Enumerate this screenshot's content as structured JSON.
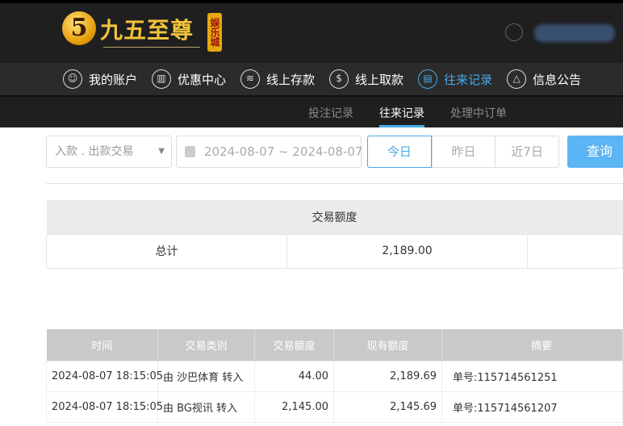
{
  "brand": {
    "logo_text": "九五至尊",
    "badge": "娱乐城",
    "logo_mark": "5"
  },
  "nav": [
    {
      "label": "我的账户",
      "icon": "user-icon",
      "active": false
    },
    {
      "label": "优惠中心",
      "icon": "gift-icon",
      "active": false
    },
    {
      "label": "线上存款",
      "icon": "deposit-icon",
      "active": false
    },
    {
      "label": "线上取款",
      "icon": "withdraw-icon",
      "active": false
    },
    {
      "label": "往来记录",
      "icon": "record-icon",
      "active": true
    },
    {
      "label": "信息公告",
      "icon": "bell-icon",
      "active": false
    }
  ],
  "subnav": [
    "投注记录",
    "往来记录",
    "处理中订单"
  ],
  "filters": {
    "type": "入款 . 出款交易",
    "date_range": "2024-08-07 ~ 2024-08-07",
    "quick": [
      "今日",
      "昨日",
      "近7日"
    ],
    "query": "查询"
  },
  "summary": {
    "header": "交易额度",
    "label": "总计",
    "value": "2,189.00"
  },
  "records": {
    "columns": [
      "时间",
      "交易类别",
      "交易额度",
      "现有额度",
      "摘要"
    ],
    "rows": [
      [
        "2024-08-07 18:15:05",
        "由 沙巴体育 转入",
        "44.00",
        "2,189.69",
        "单号:115714561251"
      ],
      [
        "2024-08-07 18:15:05",
        "由 BG视讯 转入",
        "2,145.00",
        "2,145.69",
        "单号:115714561207"
      ]
    ]
  },
  "colors": {
    "accent": "#4aa8e8",
    "header_bg": "#1f1f1f",
    "gold": "#f3c33a"
  }
}
